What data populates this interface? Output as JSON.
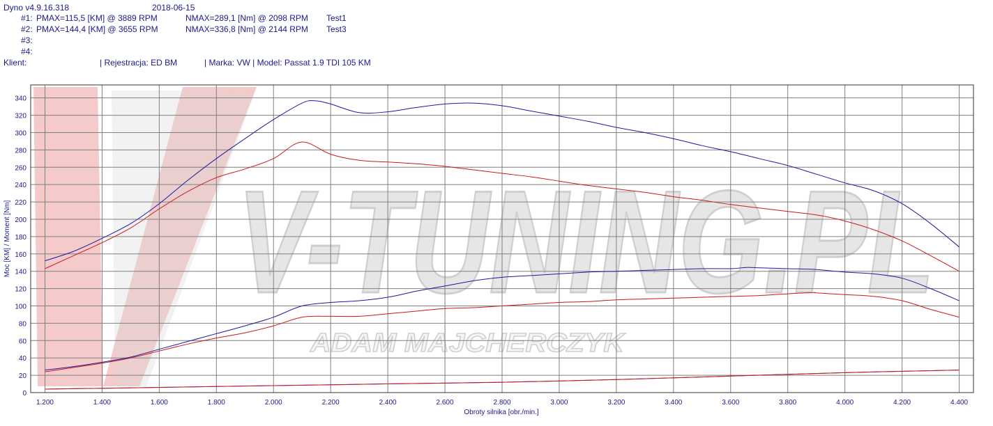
{
  "header": {
    "app_version": "Dyno v4.9.16.318",
    "date": "2018-06-15",
    "rows": [
      {
        "label": "#1:",
        "pmax": "PMAX=115,5 [KM] @ 3889 RPM",
        "nmax": "NMAX=289,1 [Nm] @ 2098 RPM",
        "test": "Test1"
      },
      {
        "label": "#2:",
        "pmax": "PMAX=144,4 [KM] @ 3655 RPM",
        "nmax": "NMAX=336,8 [Nm] @ 2144 RPM",
        "test": "Test3"
      },
      {
        "label": "#3:",
        "pmax": "",
        "nmax": "",
        "test": ""
      },
      {
        "label": "#4:",
        "pmax": "",
        "nmax": "",
        "test": ""
      }
    ],
    "client_label": "Klient:",
    "registration": "| Rejestracja: ED BM",
    "vehicle": "| Marka: VW | Model: Passat 1.9 TDI 105 KM"
  },
  "watermark": {
    "brand": "V-TUNING.PL",
    "subtitle": "ADAM MAJCHERCZYK"
  },
  "colors": {
    "test1": "#cc1a1a",
    "test3": "#1a1aa0",
    "grid": "#7f7f7f",
    "text": "#1a1a8c"
  },
  "chart_data": {
    "type": "line",
    "xlabel": "Obroty silnika [obr./min.]",
    "ylabel": "Moc [KM] / Moment [Nm]",
    "xlim": [
      1150,
      4450
    ],
    "ylim": [
      0,
      355
    ],
    "x_ticks": [
      1200,
      1400,
      1600,
      1800,
      2000,
      2200,
      2400,
      2600,
      2800,
      3000,
      3200,
      3400,
      3600,
      3800,
      4000,
      4200,
      4400
    ],
    "x_tick_labels": [
      "1.200",
      "1.400",
      "1.600",
      "1.800",
      "2.000",
      "2.200",
      "2.400",
      "2.600",
      "2.800",
      "3.000",
      "3.200",
      "3.400",
      "3.600",
      "3.800",
      "4.000",
      "4.200",
      "4.400"
    ],
    "y_ticks": [
      0,
      20,
      40,
      60,
      80,
      100,
      120,
      140,
      160,
      180,
      200,
      220,
      240,
      260,
      280,
      300,
      320,
      340
    ],
    "grid": true,
    "series": [
      {
        "name": "Test3",
        "kind": "torque",
        "color": "#1a1aa0",
        "x": [
          1200,
          1300,
          1400,
          1500,
          1600,
          1700,
          1800,
          1900,
          2000,
          2100,
          2144,
          2200,
          2300,
          2400,
          2500,
          2600,
          2700,
          2800,
          2900,
          3000,
          3100,
          3200,
          3300,
          3400,
          3500,
          3600,
          3700,
          3800,
          3900,
          4000,
          4100,
          4200,
          4300,
          4400
        ],
        "y": [
          152,
          163,
          178,
          195,
          218,
          245,
          270,
          293,
          315,
          334,
          336.8,
          333,
          323,
          324,
          329,
          333,
          334,
          331,
          325,
          319,
          313,
          306,
          300,
          293,
          285,
          278,
          270,
          262,
          252,
          242,
          233,
          218,
          195,
          168
        ]
      },
      {
        "name": "Test1",
        "kind": "torque",
        "color": "#cc1a1a",
        "x": [
          1200,
          1300,
          1400,
          1500,
          1600,
          1700,
          1800,
          1900,
          2000,
          2098,
          2200,
          2300,
          2400,
          2500,
          2600,
          2700,
          2800,
          2900,
          3000,
          3100,
          3200,
          3300,
          3400,
          3500,
          3600,
          3700,
          3800,
          3900,
          4000,
          4100,
          4200,
          4300,
          4400
        ],
        "y": [
          143,
          158,
          173,
          190,
          212,
          232,
          248,
          258,
          270,
          289.1,
          275,
          268,
          266,
          264,
          261,
          257,
          253,
          249,
          244,
          239,
          235,
          231,
          226,
          222,
          217,
          213,
          209,
          205,
          198,
          188,
          175,
          158,
          140
        ]
      },
      {
        "name": "Test3",
        "kind": "power",
        "color": "#1a1aa0",
        "x": [
          1200,
          1300,
          1400,
          1500,
          1600,
          1700,
          1800,
          1900,
          2000,
          2100,
          2200,
          2300,
          2400,
          2500,
          2600,
          2700,
          2800,
          2900,
          3000,
          3100,
          3200,
          3300,
          3400,
          3500,
          3600,
          3655,
          3700,
          3800,
          3900,
          4000,
          4100,
          4200,
          4300,
          4400
        ],
        "y": [
          26,
          30,
          35,
          41,
          50,
          59,
          68,
          77,
          87,
          100,
          104,
          106,
          110,
          117,
          123,
          129,
          133,
          135,
          137,
          139,
          140,
          141,
          142,
          143,
          143,
          144.4,
          144,
          143,
          142,
          139,
          137,
          132,
          120,
          106
        ]
      },
      {
        "name": "Test1",
        "kind": "power",
        "color": "#cc1a1a",
        "x": [
          1200,
          1300,
          1400,
          1500,
          1600,
          1700,
          1800,
          1900,
          2000,
          2100,
          2200,
          2300,
          2400,
          2500,
          2600,
          2700,
          2800,
          2900,
          3000,
          3100,
          3200,
          3300,
          3400,
          3500,
          3600,
          3700,
          3800,
          3889,
          3900,
          4000,
          4100,
          4200,
          4300,
          4400
        ],
        "y": [
          24,
          29,
          34,
          40,
          48,
          56,
          63,
          69,
          77,
          87,
          88,
          88,
          91,
          94,
          97,
          98,
          100,
          102,
          104,
          105,
          107,
          108,
          109,
          110,
          111,
          112,
          114,
          115.5,
          115,
          113,
          111,
          106,
          96,
          87
        ]
      },
      {
        "name": "Test3",
        "kind": "loss",
        "color": "#1a1aa0",
        "x": [
          1200,
          1600,
          2000,
          2400,
          2800,
          3200,
          3600,
          4000,
          4400
        ],
        "y": [
          4,
          6,
          8,
          10,
          12,
          15,
          19,
          23,
          26
        ]
      },
      {
        "name": "Test1",
        "kind": "loss",
        "color": "#cc1a1a",
        "x": [
          1200,
          1600,
          2000,
          2400,
          2800,
          3200,
          3600,
          4000,
          4400
        ],
        "y": [
          4,
          6,
          8,
          10,
          12,
          15,
          19,
          23,
          26
        ]
      }
    ]
  }
}
